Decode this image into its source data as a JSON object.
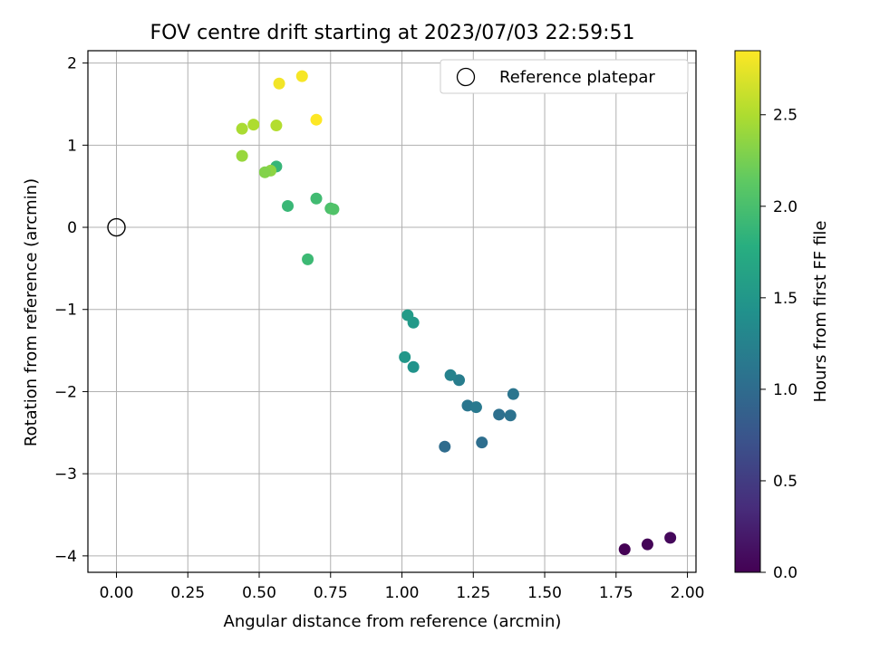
{
  "chart_data": {
    "type": "scatter",
    "title": "FOV centre drift starting at 2023/07/03 22:59:51",
    "xlabel": "Angular distance from reference (arcmin)",
    "ylabel": "Rotation from reference (arcmin)",
    "xlim": [
      -0.1,
      2.03
    ],
    "ylim": [
      -4.2,
      2.15
    ],
    "xticks": [
      0.0,
      0.25,
      0.5,
      0.75,
      1.0,
      1.25,
      1.5,
      1.75,
      2.0
    ],
    "xtick_labels": [
      "0.00",
      "0.25",
      "0.50",
      "0.75",
      "1.00",
      "1.25",
      "1.50",
      "1.75",
      "2.00"
    ],
    "yticks": [
      -4,
      -3,
      -2,
      -1,
      0,
      1,
      2
    ],
    "ytick_labels": [
      "−4",
      "−3",
      "−2",
      "−1",
      "0",
      "1",
      "2"
    ],
    "grid": true,
    "legend": {
      "position": "top-right",
      "entries": [
        "Reference platepar"
      ]
    },
    "reference_point": {
      "x": 0.0,
      "y": 0.0
    },
    "colorbar": {
      "label": "Hours from first FF file",
      "colormap": "viridis",
      "range": [
        0.0,
        2.85
      ],
      "ticks": [
        0.0,
        0.5,
        1.0,
        1.5,
        2.0,
        2.5
      ],
      "tick_labels": [
        "0.0",
        "0.5",
        "1.0",
        "1.5",
        "2.0",
        "2.5"
      ]
    },
    "points": [
      {
        "x": 1.78,
        "y": -3.92,
        "hours": 0.0
      },
      {
        "x": 1.86,
        "y": -3.86,
        "hours": 0.03
      },
      {
        "x": 1.94,
        "y": -3.78,
        "hours": 0.06
      },
      {
        "x": 1.15,
        "y": -2.67,
        "hours": 1.0
      },
      {
        "x": 1.28,
        "y": -2.62,
        "hours": 1.02
      },
      {
        "x": 1.34,
        "y": -2.28,
        "hours": 1.05
      },
      {
        "x": 1.38,
        "y": -2.29,
        "hours": 1.07
      },
      {
        "x": 1.39,
        "y": -2.03,
        "hours": 1.1
      },
      {
        "x": 1.23,
        "y": -2.17,
        "hours": 1.12
      },
      {
        "x": 1.26,
        "y": -2.19,
        "hours": 1.15
      },
      {
        "x": 1.2,
        "y": -1.86,
        "hours": 1.2
      },
      {
        "x": 1.17,
        "y": -1.8,
        "hours": 1.25
      },
      {
        "x": 1.04,
        "y": -1.7,
        "hours": 1.45
      },
      {
        "x": 1.01,
        "y": -1.58,
        "hours": 1.5
      },
      {
        "x": 1.04,
        "y": -1.16,
        "hours": 1.52
      },
      {
        "x": 1.02,
        "y": -1.07,
        "hours": 1.55
      },
      {
        "x": 0.67,
        "y": -0.39,
        "hours": 1.92
      },
      {
        "x": 0.6,
        "y": 0.26,
        "hours": 1.9
      },
      {
        "x": 0.7,
        "y": 0.35,
        "hours": 1.95
      },
      {
        "x": 0.75,
        "y": 0.23,
        "hours": 2.02
      },
      {
        "x": 0.76,
        "y": 0.22,
        "hours": 2.05
      },
      {
        "x": 0.56,
        "y": 0.74,
        "hours": 1.88
      },
      {
        "x": 0.54,
        "y": 0.69,
        "hours": 2.35
      },
      {
        "x": 0.52,
        "y": 0.67,
        "hours": 2.3
      },
      {
        "x": 0.44,
        "y": 0.87,
        "hours": 2.4
      },
      {
        "x": 0.44,
        "y": 1.2,
        "hours": 2.48
      },
      {
        "x": 0.48,
        "y": 1.25,
        "hours": 2.5
      },
      {
        "x": 0.56,
        "y": 1.24,
        "hours": 2.52
      },
      {
        "x": 0.57,
        "y": 1.75,
        "hours": 2.8
      },
      {
        "x": 0.65,
        "y": 1.84,
        "hours": 2.82
      },
      {
        "x": 0.7,
        "y": 1.31,
        "hours": 2.85
      }
    ]
  }
}
